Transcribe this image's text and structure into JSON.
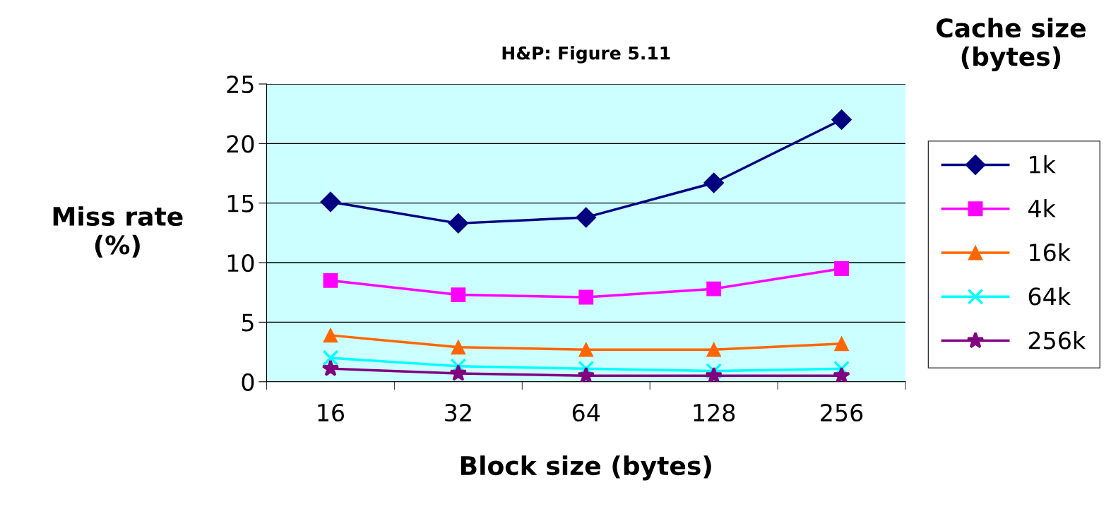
{
  "chart_data": {
    "type": "line",
    "title": "H&P: Figure 5.11",
    "xlabel": "Block size (bytes)",
    "ylabel": "Miss rate\n(%)",
    "legend_title": "Cache size\n(bytes)",
    "categories": [
      "16",
      "32",
      "64",
      "128",
      "256"
    ],
    "series": [
      {
        "name": "1k",
        "color": "#000080",
        "marker": "diamond",
        "values": [
          15.1,
          13.3,
          13.8,
          16.7,
          22.0
        ]
      },
      {
        "name": "4k",
        "color": "#ff00ff",
        "marker": "square",
        "values": [
          8.5,
          7.3,
          7.1,
          7.8,
          9.5
        ]
      },
      {
        "name": "16k",
        "color": "#ff6600",
        "marker": "triangle",
        "values": [
          3.9,
          2.9,
          2.7,
          2.7,
          3.2
        ]
      },
      {
        "name": "64k",
        "color": "#00ffff",
        "marker": "cross",
        "values": [
          2.0,
          1.3,
          1.1,
          0.9,
          1.1
        ]
      },
      {
        "name": "256k",
        "color": "#800080",
        "marker": "star",
        "values": [
          1.1,
          0.7,
          0.5,
          0.5,
          0.5
        ]
      }
    ],
    "ylim": [
      0,
      25
    ],
    "yticks": [
      0,
      5,
      10,
      15,
      20,
      25
    ],
    "grid": "y",
    "legend": "right"
  }
}
